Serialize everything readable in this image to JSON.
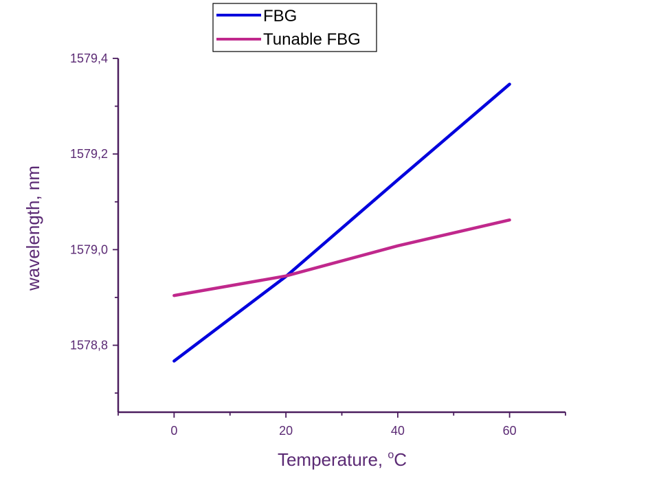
{
  "chart_data": {
    "type": "line",
    "xlabel": "Temperature, ",
    "xlabel_sup": "o",
    "xlabel_unit": "C",
    "ylabel": "wavelength, nm",
    "xlim": [
      -10,
      70
    ],
    "ylim": [
      1578.66,
      1579.4
    ],
    "x_ticks_major": [
      0,
      20,
      40,
      60
    ],
    "x_ticks_minor": [
      -10,
      10,
      30,
      50,
      70
    ],
    "y_ticks_major": [
      1578.8,
      1579.0,
      1579.2,
      1579.4
    ],
    "y_ticks_minor": [
      1578.7,
      1578.9,
      1579.1,
      1579.3
    ],
    "x_tick_labels": [
      "0",
      "20",
      "40",
      "60"
    ],
    "y_tick_labels": [
      "1578,8",
      "1579,0",
      "1579,2",
      "1579,4"
    ],
    "legend_position": "top-center",
    "grid": false,
    "axis_color": "#4B1D5E",
    "label_color": "#5B2A74",
    "series": [
      {
        "name": "FBG",
        "color": "#0000DD",
        "x": [
          0,
          20,
          40,
          60
        ],
        "y": [
          1578.767,
          1578.944,
          1579.146,
          1579.346
        ]
      },
      {
        "name": "Tunable FBG",
        "color": "#C0288C",
        "x": [
          0,
          20,
          40,
          60
        ],
        "y": [
          1578.904,
          1578.945,
          1579.008,
          1579.062
        ]
      }
    ]
  }
}
